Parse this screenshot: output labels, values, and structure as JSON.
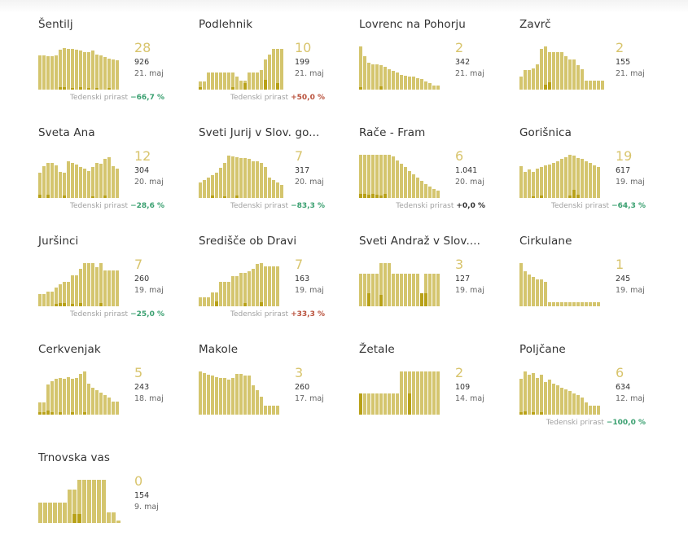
{
  "trend_label": "Tedenski prirast",
  "colors": {
    "bar": "#d4c56e",
    "bar_dark": "#b8a118",
    "big_number": "#d8c46c",
    "negative": "#3aa070",
    "positive": "#b9513c"
  },
  "municipalities": [
    {
      "name": "Šentilj",
      "big": "28",
      "total": "926",
      "date": "21. maj",
      "trend": "−66,7 %",
      "trend_dir": "neg",
      "bars": [
        0.78,
        0.78,
        0.76,
        0.76,
        0.78,
        0.9,
        0.95,
        0.93,
        0.93,
        0.9,
        0.88,
        0.86,
        0.86,
        0.88,
        0.8,
        0.78,
        0.74,
        0.7,
        0.68,
        0.66
      ],
      "dark": [
        0,
        0,
        0,
        0,
        0,
        0.05,
        0.06,
        0,
        0.04,
        0,
        0.05,
        0,
        0.04,
        0,
        0.04,
        0,
        0,
        0.03,
        0,
        0
      ]
    },
    {
      "name": "Podlehnik",
      "big": "10",
      "total": "199",
      "date": "21. maj",
      "trend": "+50,0 %",
      "trend_dir": "pos",
      "bars": [
        0.18,
        0.18,
        0.38,
        0.38,
        0.38,
        0.38,
        0.38,
        0.38,
        0.38,
        0.3,
        0.2,
        0.2,
        0.38,
        0.38,
        0.38,
        0.45,
        0.68,
        0.8,
        0.92,
        0.92,
        0.92
      ],
      "dark": [
        0.05,
        0,
        0,
        0,
        0,
        0,
        0,
        0,
        0.05,
        0,
        0,
        0.15,
        0,
        0,
        0,
        0,
        0.22,
        0,
        0,
        0.15,
        0
      ]
    },
    {
      "name": "Lovrenc na Pohorju",
      "big": "2",
      "total": "342",
      "date": "21. maj",
      "trend": "",
      "trend_dir": "",
      "bars": [
        0.98,
        0.75,
        0.62,
        0.58,
        0.58,
        0.56,
        0.52,
        0.46,
        0.42,
        0.38,
        0.34,
        0.32,
        0.3,
        0.3,
        0.26,
        0.24,
        0.18,
        0.14,
        0.1,
        0.1
      ],
      "dark": [
        0.06,
        0,
        0,
        0,
        0,
        0.07,
        0,
        0,
        0,
        0,
        0,
        0,
        0,
        0,
        0,
        0,
        0,
        0,
        0,
        0
      ]
    },
    {
      "name": "Zavrč",
      "big": "2",
      "total": "155",
      "date": "21. maj",
      "trend": "",
      "trend_dir": "",
      "bars": [
        0.3,
        0.45,
        0.45,
        0.48,
        0.58,
        0.92,
        0.98,
        0.86,
        0.86,
        0.86,
        0.86,
        0.76,
        0.68,
        0.68,
        0.56,
        0.46,
        0.2,
        0.2,
        0.2,
        0.2,
        0.2
      ],
      "dark": [
        0,
        0,
        0,
        0,
        0,
        0,
        0.12,
        0.16,
        0,
        0,
        0,
        0,
        0,
        0,
        0,
        0,
        0,
        0,
        0,
        0,
        0
      ]
    },
    {
      "name": "Sveta Ana",
      "big": "12",
      "total": "304",
      "date": "20. maj",
      "trend": "−28,6 %",
      "trend_dir": "neg",
      "bars": [
        0.58,
        0.72,
        0.8,
        0.8,
        0.74,
        0.6,
        0.58,
        0.84,
        0.8,
        0.76,
        0.7,
        0.66,
        0.62,
        0.7,
        0.8,
        0.78,
        0.88,
        0.92,
        0.72,
        0.66
      ],
      "dark": [
        0.08,
        0,
        0.08,
        0,
        0,
        0,
        0.05,
        0,
        0,
        0,
        0,
        0,
        0,
        0.04,
        0,
        0,
        0.05,
        0,
        0,
        0
      ]
    },
    {
      "name": "Sveti Jurij v Slov. go...",
      "big": "7",
      "total": "317",
      "date": "20. maj",
      "trend": "−83,3 %",
      "trend_dir": "neg",
      "bars": [
        0.36,
        0.4,
        0.46,
        0.52,
        0.58,
        0.68,
        0.8,
        0.96,
        0.94,
        0.92,
        0.9,
        0.9,
        0.88,
        0.84,
        0.84,
        0.8,
        0.7,
        0.46,
        0.4,
        0.36,
        0.3
      ],
      "dark": [
        0,
        0,
        0,
        0.06,
        0,
        0,
        0.04,
        0,
        0,
        0.05,
        0,
        0,
        0,
        0,
        0,
        0,
        0,
        0,
        0,
        0,
        0
      ]
    },
    {
      "name": "Rače - Fram",
      "big": "6",
      "total": "1.041",
      "date": "20. maj",
      "trend": "+0,0 %",
      "trend_dir": "zero",
      "bars": [
        0.98,
        0.98,
        0.98,
        0.98,
        0.98,
        0.98,
        0.98,
        0.98,
        0.94,
        0.86,
        0.78,
        0.7,
        0.62,
        0.54,
        0.46,
        0.38,
        0.32,
        0.26,
        0.2,
        0.16
      ],
      "dark": [
        0.1,
        0.1,
        0.08,
        0.1,
        0.08,
        0.06,
        0.1,
        0,
        0,
        0,
        0,
        0,
        0,
        0,
        0,
        0,
        0,
        0,
        0,
        0
      ]
    },
    {
      "name": "Gorišnica",
      "big": "19",
      "total": "617",
      "date": "19. maj",
      "trend": "−64,3 %",
      "trend_dir": "neg",
      "bars": [
        0.72,
        0.6,
        0.64,
        0.6,
        0.66,
        0.7,
        0.74,
        0.76,
        0.8,
        0.84,
        0.88,
        0.92,
        0.98,
        0.96,
        0.9,
        0.88,
        0.84,
        0.8,
        0.74,
        0.7
      ],
      "dark": [
        0,
        0,
        0,
        0.04,
        0,
        0.05,
        0,
        0,
        0,
        0,
        0,
        0,
        0.05,
        0.18,
        0.08,
        0,
        0,
        0,
        0,
        0
      ]
    },
    {
      "name": "Juršinci",
      "big": "7",
      "total": "260",
      "date": "19. maj",
      "trend": "−25,0 %",
      "trend_dir": "neg",
      "bars": [
        0.28,
        0.28,
        0.34,
        0.34,
        0.42,
        0.5,
        0.56,
        0.56,
        0.7,
        0.7,
        0.86,
        0.98,
        0.98,
        0.98,
        0.88,
        0.98,
        0.82,
        0.82,
        0.82,
        0.82
      ],
      "dark": [
        0,
        0,
        0,
        0,
        0.06,
        0.08,
        0.08,
        0,
        0.06,
        0,
        0.08,
        0,
        0,
        0,
        0,
        0.08,
        0,
        0,
        0,
        0
      ]
    },
    {
      "name": "Središče ob Dravi",
      "big": "7",
      "total": "163",
      "date": "19. maj",
      "trend": "+33,3 %",
      "trend_dir": "pos",
      "bars": [
        0.2,
        0.2,
        0.2,
        0.32,
        0.32,
        0.56,
        0.56,
        0.56,
        0.68,
        0.68,
        0.76,
        0.76,
        0.8,
        0.86,
        0.96,
        0.98,
        0.9,
        0.9,
        0.9,
        0.9
      ],
      "dark": [
        0,
        0,
        0,
        0,
        0.12,
        0,
        0,
        0,
        0,
        0,
        0,
        0.08,
        0,
        0,
        0,
        0.1,
        0,
        0,
        0,
        0
      ]
    },
    {
      "name": "Sveti Andraž v Slov....",
      "big": "3",
      "total": "127",
      "date": "19. maj",
      "trend": "",
      "trend_dir": "",
      "bars": [
        0.74,
        0.74,
        0.74,
        0.74,
        0.74,
        0.98,
        0.98,
        0.98,
        0.74,
        0.74,
        0.74,
        0.74,
        0.74,
        0.74,
        0.74,
        0.3,
        0.74,
        0.74,
        0.74,
        0.74
      ],
      "dark": [
        0,
        0,
        0.3,
        0,
        0,
        0.26,
        0,
        0,
        0,
        0,
        0,
        0,
        0,
        0,
        0,
        0.3,
        0.3,
        0,
        0,
        0
      ]
    },
    {
      "name": "Cirkulane",
      "big": "1",
      "total": "245",
      "date": "19. maj",
      "trend": "",
      "trend_dir": "",
      "bars": [
        0.98,
        0.8,
        0.72,
        0.66,
        0.62,
        0.62,
        0.56,
        0.1,
        0.1,
        0.1,
        0.1,
        0.1,
        0.1,
        0.1,
        0.1,
        0.1,
        0.1,
        0.1,
        0.1,
        0.1
      ],
      "dark": [
        0,
        0,
        0,
        0,
        0,
        0,
        0,
        0,
        0,
        0,
        0,
        0,
        0,
        0,
        0,
        0,
        0,
        0,
        0,
        0
      ]
    },
    {
      "name": "Cerkvenjak",
      "big": "5",
      "total": "243",
      "date": "18. maj",
      "trend": "",
      "trend_dir": "",
      "bars": [
        0.28,
        0.28,
        0.68,
        0.76,
        0.82,
        0.84,
        0.82,
        0.86,
        0.82,
        0.84,
        0.92,
        0.98,
        0.7,
        0.62,
        0.56,
        0.5,
        0.44,
        0.38,
        0.3,
        0.3
      ],
      "dark": [
        0.06,
        0.06,
        0.1,
        0.06,
        0,
        0.06,
        0,
        0,
        0.06,
        0,
        0,
        0.05,
        0,
        0,
        0,
        0,
        0,
        0,
        0,
        0
      ]
    },
    {
      "name": "Makole",
      "big": "3",
      "total": "260",
      "date": "17. maj",
      "trend": "",
      "trend_dir": "",
      "bars": [
        0.98,
        0.94,
        0.9,
        0.88,
        0.86,
        0.84,
        0.84,
        0.8,
        0.84,
        0.92,
        0.92,
        0.88,
        0.88,
        0.66,
        0.56,
        0.4,
        0.2,
        0.2,
        0.2,
        0.2
      ],
      "dark": [
        0,
        0,
        0,
        0,
        0,
        0,
        0,
        0,
        0,
        0,
        0,
        0,
        0,
        0,
        0,
        0,
        0,
        0,
        0,
        0
      ]
    },
    {
      "name": "Žetale",
      "big": "2",
      "total": "109",
      "date": "14. maj",
      "trend": "",
      "trend_dir": "",
      "bars": [
        0.48,
        0.48,
        0.48,
        0.48,
        0.48,
        0.48,
        0.48,
        0.48,
        0.48,
        0.48,
        0.98,
        0.98,
        0.98,
        0.98,
        0.98,
        0.98,
        0.98,
        0.98,
        0.98,
        0.98
      ],
      "dark": [
        0.48,
        0,
        0,
        0,
        0,
        0,
        0,
        0,
        0,
        0,
        0,
        0,
        0.48,
        0,
        0,
        0,
        0,
        0,
        0,
        0
      ]
    },
    {
      "name": "Poljčane",
      "big": "6",
      "total": "634",
      "date": "12. maj",
      "trend": "−100,0 %",
      "trend_dir": "neg",
      "bars": [
        0.82,
        0.98,
        0.9,
        0.94,
        0.84,
        0.9,
        0.74,
        0.8,
        0.7,
        0.66,
        0.62,
        0.58,
        0.54,
        0.48,
        0.44,
        0.38,
        0.28,
        0.2,
        0.2,
        0.2
      ],
      "dark": [
        0.05,
        0.08,
        0,
        0.06,
        0,
        0.05,
        0,
        0,
        0,
        0,
        0,
        0,
        0,
        0,
        0,
        0,
        0,
        0,
        0,
        0
      ]
    },
    {
      "name": "Trnovska vas",
      "big": "0",
      "total": "154",
      "date": "9. maj",
      "trend": "",
      "trend_dir": "",
      "bars": [
        0.46,
        0.46,
        0.46,
        0.46,
        0.46,
        0.46,
        0.76,
        0.76,
        0.98,
        0.98,
        0.98,
        0.98,
        0.98,
        0.98,
        0.24,
        0.24,
        0.06
      ],
      "dark": [
        0,
        0,
        0,
        0,
        0,
        0,
        0,
        0.2,
        0.2,
        0,
        0,
        0,
        0,
        0,
        0,
        0,
        0
      ]
    }
  ]
}
